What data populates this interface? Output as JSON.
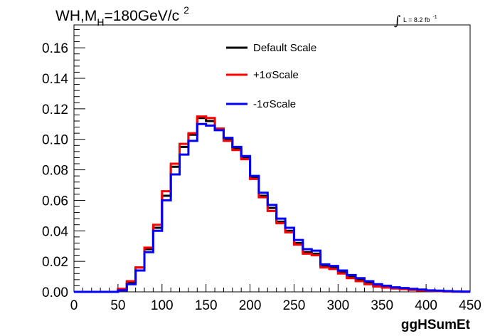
{
  "chart_data": {
    "type": "line",
    "title": {
      "base": "WH,M",
      "sub": "H",
      "mid": "=180GeV/c",
      "sup": "2"
    },
    "lumi": {
      "integral": "∫",
      "text": "L = 8.2 fb",
      "sup": "-1"
    },
    "xlabel": "ggHSumEt",
    "ylabel": "",
    "xlim": [
      0,
      450
    ],
    "ylim": [
      0,
      0.175
    ],
    "x_ticks": [
      "0",
      "50",
      "100",
      "150",
      "200",
      "250",
      "300",
      "350",
      "400",
      "450"
    ],
    "y_ticks": [
      "0.00",
      "0.02",
      "0.04",
      "0.06",
      "0.08",
      "0.10",
      "0.12",
      "0.14",
      "0.16"
    ],
    "bin_width": 10,
    "bin_edges_start": 0,
    "grid": false,
    "legend_position": "top-center",
    "series": [
      {
        "name": "Default Scale",
        "color": "#000000",
        "values": [
          0,
          0,
          0,
          0,
          0,
          0.0015,
          0.006,
          0.016,
          0.028,
          0.042,
          0.063,
          0.082,
          0.095,
          0.103,
          0.114,
          0.112,
          0.107,
          0.1,
          0.094,
          0.088,
          0.075,
          0.063,
          0.055,
          0.046,
          0.04,
          0.032,
          0.026,
          0.025,
          0.017,
          0.016,
          0.013,
          0.01,
          0.008,
          0.006,
          0.004,
          0.003,
          0.0025,
          0.002,
          0.0015,
          0.001,
          0.0008,
          0.0006,
          0.0004,
          0.0002,
          0.0001
        ]
      },
      {
        "name": "+1σScale",
        "color": "#ff0000",
        "values": [
          0,
          0,
          0,
          0,
          0,
          0.002,
          0.007,
          0.016,
          0.029,
          0.044,
          0.066,
          0.084,
          0.097,
          0.104,
          0.115,
          0.114,
          0.107,
          0.099,
          0.093,
          0.087,
          0.074,
          0.062,
          0.053,
          0.045,
          0.039,
          0.031,
          0.025,
          0.024,
          0.016,
          0.015,
          0.012,
          0.009,
          0.007,
          0.005,
          0.0035,
          0.0028,
          0.0022,
          0.0018,
          0.0013,
          0.0009,
          0.0007,
          0.0005,
          0.0003,
          0.0002,
          0.0001
        ]
      },
      {
        "name": "-1σScale",
        "color": "#0000ff",
        "values": [
          0,
          0,
          0,
          0,
          0,
          0.001,
          0.005,
          0.014,
          0.026,
          0.04,
          0.06,
          0.077,
          0.09,
          0.099,
          0.11,
          0.109,
          0.106,
          0.101,
          0.095,
          0.089,
          0.076,
          0.065,
          0.057,
          0.048,
          0.042,
          0.034,
          0.028,
          0.027,
          0.018,
          0.017,
          0.014,
          0.011,
          0.009,
          0.007,
          0.005,
          0.004,
          0.003,
          0.0025,
          0.002,
          0.0015,
          0.001,
          0.0008,
          0.0005,
          0.0003,
          0.0002
        ]
      }
    ]
  }
}
